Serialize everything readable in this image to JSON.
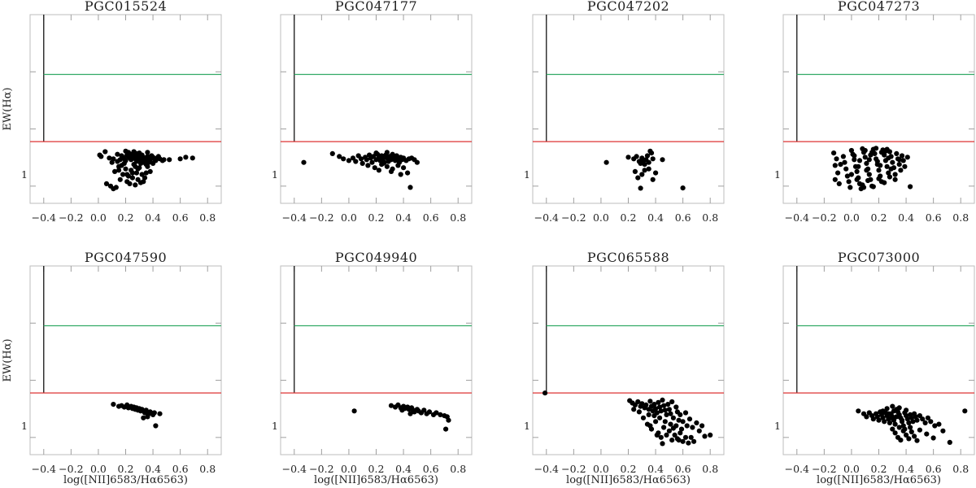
{
  "figure": {
    "xlabel": "log([NII]6583/Hα6563)",
    "ylabel": "EW(Hα)"
  },
  "style": {
    "line_colors": {
      "vertical": "#000000",
      "green": "#33aa66",
      "red": "#dd3333"
    },
    "point_color": "#000000",
    "frame_color": "#bdbdbd"
  },
  "chart_data": [
    {
      "type": "scatter",
      "title": "PGC015524",
      "xlabel": "",
      "ylabel": "EW(Hα)",
      "xlim": [
        -0.5,
        0.9
      ],
      "ylim": [
        0.5,
        1000
      ],
      "y_scale": "log",
      "x_ticks": [
        -0.4,
        -0.2,
        0.0,
        0.2,
        0.4,
        0.6,
        0.8
      ],
      "x_tick_labels": [
        "−0.4",
        "−0.2",
        "0.0",
        "0.2",
        "0.4",
        "0.6",
        "0.8"
      ],
      "y_tick_labels": [
        {
          "value": 1,
          "label": "1"
        }
      ],
      "reference_lines": {
        "vertical_x": -0.4,
        "green_y": 90,
        "red_y": 6
      },
      "points_text": "0.01,3.5;0.02,3.3;0.05,4.0;0.08,3.1;0.11,3.0;0.14,3.6;0.16,2.9;0.17,3.4;0.18,3.2;0.19,3.0;0.20,2.8;0.21,3.5;0.22,3.3;0.23,3.1;0.24,2.9;0.25,3.4;0.26,3.2;0.27,3.0;0.28,2.7;0.29,3.3;0.30,3.1;0.31,2.9;0.32,3.5;0.33,3.2;0.34,3.0;0.35,2.8;0.36,3.3;0.37,3.1;0.38,2.9;0.39,3.4;0.40,3.2;0.41,3.0;0.42,2.8;0.43,3.1;0.45,3.0;0.48,2.9;0.12,1.8;0.15,2.2;0.18,1.6;0.20,2.0;0.22,1.5;0.24,1.9;0.26,2.4;0.28,1.7;0.30,2.1;0.32,1.6;0.34,1.4;0.36,2.2;0.38,1.8;0.16,1.3;0.21,1.2;0.25,1.4;0.29,1.3;0.33,1.2;0.06,1.1;0.09,1.0;0.11,0.9;0.13,0.95;0.23,1.1;0.27,1.05;0.31,1.15;0.35,1.7;0.37,2.6;0.19,2.5;0.14,2.7;0.10,2.6;0.24,3.6;0.28,3.7;0.30,3.8;0.22,3.9;0.26,4.0;0.33,2.6;0.40,2.5;0.44,3.3;0.47,2.8;0.60,3.0;0.64,3.2;0.69,3.1;0.52,2.9;0.36,3.9;0.20,4.1;0.17,2.3;0.27,2.2;0.31,2.5;0.15,1.9;0.25,1.7;0.35,2.4;0.21,1.6;0.29,2.0"
    },
    {
      "type": "scatter",
      "title": "PGC047177",
      "xlabel": "",
      "ylabel": "",
      "xlim": [
        -0.5,
        0.9
      ],
      "ylim": [
        0.5,
        1000
      ],
      "y_scale": "log",
      "x_ticks": [
        -0.4,
        -0.2,
        0.0,
        0.2,
        0.4,
        0.6,
        0.8
      ],
      "x_tick_labels": [
        "−0.4",
        "−0.2",
        "0.0",
        "0.2",
        "0.4",
        "0.6",
        "0.8"
      ],
      "y_tick_labels": [
        {
          "value": 1,
          "label": "1"
        }
      ],
      "reference_lines": {
        "vertical_x": -0.4,
        "green_y": 90,
        "red_y": 6
      },
      "points_text": "-0.33,2.6;-0.12,3.7;-0.07,3.3;-0.04,3.0;0.00,2.8;0.03,3.1;0.05,2.7;0.07,3.4;0.09,3.0;0.10,2.5;0.12,3.2;0.13,2.9;0.15,3.5;0.16,3.1;0.17,2.6;0.18,3.3;0.20,2.9;0.21,3.6;0.22,3.2;0.23,2.8;0.24,3.4;0.25,3.0;0.26,2.6;0.27,3.5;0.28,3.1;0.29,2.7;0.30,3.3;0.31,2.9;0.32,3.6;0.33,3.2;0.34,2.8;0.35,3.4;0.36,3.0;0.37,2.6;0.38,3.2;0.39,2.9;0.40,3.1;0.42,2.8;0.44,3.0;0.46,3.1;0.48,2.9;0.50,2.6;0.14,2.3;0.19,2.1;0.24,2.4;0.28,2.2;0.32,2.0;0.36,2.3;0.40,2.1;0.22,1.9;0.31,1.8;0.38,1.6;0.43,1.7;0.45,0.95;0.20,3.8;0.28,3.9;0.25,2.5"
    },
    {
      "type": "scatter",
      "title": "PGC047202",
      "xlabel": "",
      "ylabel": "",
      "xlim": [
        -0.5,
        0.9
      ],
      "ylim": [
        0.5,
        1000
      ],
      "y_scale": "log",
      "x_ticks": [
        -0.4,
        -0.2,
        0.0,
        0.2,
        0.4,
        0.6,
        0.8
      ],
      "x_tick_labels": [
        "−0.4",
        "−0.2",
        "0.0",
        "0.2",
        "0.4",
        "0.6",
        "0.8"
      ],
      "y_tick_labels": [
        {
          "value": 1,
          "label": "1"
        }
      ],
      "reference_lines": {
        "vertical_x": -0.4,
        "green_y": 90,
        "red_y": 6
      },
      "points_text": "0.04,2.6;0.20,3.2;0.24,3.0;0.26,3.3;0.28,2.7;0.29,2.5;0.30,3.1;0.31,2.8;0.32,2.4;0.33,2.9;0.34,3.4;0.35,2.6;0.36,4.1;0.37,3.8;0.38,3.0;0.30,1.6;0.32,1.9;0.35,2.0;0.40,1.7;0.27,1.4;0.25,1.8;0.45,2.9;0.29,0.92;0.60,0.93;0.38,1.3"
    },
    {
      "type": "scatter",
      "title": "PGC047273",
      "xlabel": "",
      "ylabel": "",
      "xlim": [
        -0.5,
        0.9
      ],
      "ylim": [
        0.5,
        1000
      ],
      "y_scale": "log",
      "x_ticks": [
        -0.4,
        -0.2,
        0.0,
        0.2,
        0.4,
        0.6,
        0.8
      ],
      "x_tick_labels": [
        "−0.4",
        "−0.2",
        "0.0",
        "0.2",
        "0.4",
        "0.6",
        "0.8"
      ],
      "y_tick_labels": [
        {
          "value": 1,
          "label": "1"
        }
      ],
      "reference_lines": {
        "vertical_x": -0.4,
        "green_y": 90,
        "red_y": 6
      },
      "points_text": "-0.13,3.8;-0.11,3.0;-0.12,2.3;-0.10,1.7;-0.12,1.3;-0.09,1.1;-0.06,3.3;-0.05,2.6;-0.04,2.0;-0.03,1.5;-0.02,1.2;-0.01,0.95;0.00,4.2;0.01,3.6;0.02,2.9;0.03,2.2;0.04,1.8;0.05,1.4;0.06,1.1;0.07,0.9;0.08,4.5;0.09,3.9;0.10,3.2;0.11,2.5;0.12,2.0;0.13,1.6;0.14,1.3;0.15,1.0;0.16,4.4;0.17,3.7;0.18,3.0;0.19,2.4;0.20,1.9;0.21,1.5;0.22,1.2;0.23,4.3;0.24,3.5;0.25,2.8;0.26,2.2;0.27,1.7;0.28,4.0;0.29,3.3;0.30,2.6;0.31,2.1;0.32,1.6;0.33,3.7;0.34,3.0;0.35,2.4;0.36,1.9;0.37,3.4;0.38,2.8;0.39,2.2;0.41,3.2;0.43,0.98;0.02,3.4;0.06,2.8;0.10,4.2;0.14,3.5;0.18,4.6;0.22,3.9;0.26,4.4;0.04,1.3;0.08,1.05;0.12,1.25;0.16,0.98;0.20,1.35;0.24,1.15;0.28,1.45;0.32,1.3;-0.08,2.4;0.00,1.6;0.11,1.9;0.19,2.7;0.27,3.1;0.35,2.9;0.09,0.95;0.05,2.2;0.13,2.9;0.21,2.3;0.29,2.0;0.15,3.9;0.25,4.1"
    },
    {
      "type": "scatter",
      "title": "PGC047590",
      "xlabel": "log([NII]6583/Hα6563)",
      "ylabel": "EW(Hα)",
      "xlim": [
        -0.5,
        0.9
      ],
      "ylim": [
        0.5,
        1000
      ],
      "y_scale": "log",
      "x_ticks": [
        -0.4,
        -0.2,
        0.0,
        0.2,
        0.4,
        0.6,
        0.8
      ],
      "x_tick_labels": [
        "−0.4",
        "−0.2",
        "0.0",
        "0.2",
        "0.4",
        "0.6",
        "0.8"
      ],
      "y_tick_labels": [
        {
          "value": 1,
          "label": "1"
        }
      ],
      "reference_lines": {
        "vertical_x": -0.4,
        "green_y": 90,
        "red_y": 6
      },
      "points_text": "0.11,3.8;0.15,3.5;0.17,3.6;0.19,3.4;0.21,3.7;0.22,3.3;0.24,3.5;0.25,3.2;0.26,3.4;0.27,3.1;0.28,3.3;0.29,3.0;0.30,3.2;0.31,2.9;0.32,3.1;0.34,2.7;0.35,3.0;0.37,2.6;0.38,2.8;0.40,2.5;0.41,2.7;0.45,2.6;0.36,2.3;0.33,2.2;0.42,1.6"
    },
    {
      "type": "scatter",
      "title": "PGC049940",
      "xlabel": "log([NII]6583/Hα6563)",
      "ylabel": "",
      "xlim": [
        -0.5,
        0.9
      ],
      "ylim": [
        0.5,
        1000
      ],
      "y_scale": "log",
      "x_ticks": [
        -0.4,
        -0.2,
        0.0,
        0.2,
        0.4,
        0.6,
        0.8
      ],
      "x_tick_labels": [
        "−0.4",
        "−0.2",
        "0.0",
        "0.2",
        "0.4",
        "0.6",
        "0.8"
      ],
      "y_tick_labels": [
        {
          "value": 1,
          "label": "1"
        }
      ],
      "reference_lines": {
        "vertical_x": -0.4,
        "green_y": 90,
        "red_y": 6
      },
      "points_text": "0.04,2.9;0.31,3.6;0.34,3.4;0.36,3.7;0.38,3.3;0.40,3.5;0.41,3.2;0.43,3.4;0.44,3.1;0.46,3.3;0.47,3.0;0.48,2.8;0.50,3.1;0.51,2.9;0.53,2.7;0.55,3.0;0.57,2.6;0.59,2.8;0.62,2.5;0.64,2.7;0.67,2.5;0.70,2.4;0.72,2.3;0.73,2.0;0.71,1.4;0.45,2.6;0.39,3.0"
    },
    {
      "type": "scatter",
      "title": "PGC065588",
      "xlabel": "log([NII]6583/Hα6563)",
      "ylabel": "",
      "xlim": [
        -0.5,
        0.9
      ],
      "ylim": [
        0.5,
        1000
      ],
      "y_scale": "log",
      "x_ticks": [
        -0.4,
        -0.2,
        0.0,
        0.2,
        0.4,
        0.6,
        0.8
      ],
      "x_tick_labels": [
        "−0.4",
        "−0.2",
        "0.0",
        "0.2",
        "0.4",
        "0.6",
        "0.8"
      ],
      "y_tick_labels": [
        {
          "value": 1,
          "label": "1"
        }
      ],
      "reference_lines": {
        "vertical_x": -0.4,
        "green_y": 90,
        "red_y": 6
      },
      "points_text": "-0.41,6.0;0.21,4.4;0.23,4.0;0.25,3.7;0.27,4.2;0.29,3.5;0.30,3.9;0.32,3.3;0.33,3.7;0.35,3.1;0.36,4.3;0.37,3.5;0.38,2.9;0.39,3.8;0.40,3.2;0.41,2.7;0.42,4.1;0.43,3.4;0.44,2.9;0.45,4.5;0.46,3.6;0.47,3.0;0.48,2.5;0.49,3.8;0.50,3.1;0.51,2.6;0.52,4.2;0.53,2.2;0.55,3.4;0.56,2.8;0.57,2.0;0.58,2.5;0.60,1.9;0.62,2.7;0.63,1.6;0.65,2.1;0.67,1.5;0.70,1.8;0.72,1.3;0.74,1.6;0.76,1.05;0.80,1.1;0.34,1.7;0.37,1.4;0.40,1.9;0.42,1.2;0.44,1.0;0.46,1.5;0.48,1.1;0.50,1.3;0.52,0.9;0.54,1.1;0.56,0.95;0.58,1.2;0.60,0.85;0.62,1.0;0.64,0.8;0.66,1.0;0.68,0.85;0.31,2.2;0.35,2.5;0.39,2.4;0.43,2.2;0.47,1.9;0.51,1.7;0.55,1.6;0.59,1.4;0.28,2.8;0.24,3.1;0.41,1.1;0.45,0.78;0.53,1.45;0.57,0.9;0.36,1.6"
    },
    {
      "type": "scatter",
      "title": "PGC073000",
      "xlabel": "log([NII]6583/Hα6563)",
      "ylabel": "",
      "xlim": [
        -0.5,
        0.9
      ],
      "ylim": [
        0.5,
        1000
      ],
      "y_scale": "log",
      "x_ticks": [
        -0.4,
        -0.2,
        0.0,
        0.2,
        0.4,
        0.6,
        0.8
      ],
      "x_tick_labels": [
        "−0.4",
        "−0.2",
        "0.0",
        "0.2",
        "0.4",
        "0.6",
        "0.8"
      ],
      "y_tick_labels": [
        {
          "value": 1,
          "label": "1"
        }
      ],
      "reference_lines": {
        "vertical_x": -0.4,
        "green_y": 90,
        "red_y": 6
      },
      "points_text": "0.05,2.9;0.09,2.6;0.11,2.3;0.13,2.7;0.15,2.4;0.16,2.1;0.18,2.6;0.19,2.3;0.20,2.0;0.21,2.8;0.22,2.5;0.23,2.2;0.24,1.9;0.25,2.7;0.26,2.4;0.27,2.1;0.28,1.8;0.29,2.6;0.30,2.3;0.31,2.0;0.32,1.7;0.33,3.1;0.34,2.8;0.35,2.5;0.36,2.2;0.37,1.9;0.38,1.6;0.39,2.7;0.40,2.4;0.41,2.1;0.42,1.8;0.43,2.5;0.44,2.2;0.45,1.9;0.46,2.6;0.47,2.3;0.48,2.0;0.50,2.4;0.52,2.1;0.54,1.8;0.56,2.2;0.58,1.9;0.61,1.6;0.64,1.7;0.67,1.3;0.72,0.82;0.83,2.9;0.30,1.4;0.32,1.2;0.34,1.0;0.36,0.9;0.38,1.3;0.40,1.1;0.42,0.95;0.44,1.25;0.46,1.05;0.48,0.88;0.50,1.35;0.55,1.15;0.60,0.98;0.35,3.3;0.30,3.5;0.26,3.2;0.40,3.0;0.23,2.9;0.27,2.6;0.31,2.9;0.35,1.5;0.39,1.4;0.43,1.5;0.37,2.0;0.33,2.3;0.29,2.2"
    }
  ]
}
